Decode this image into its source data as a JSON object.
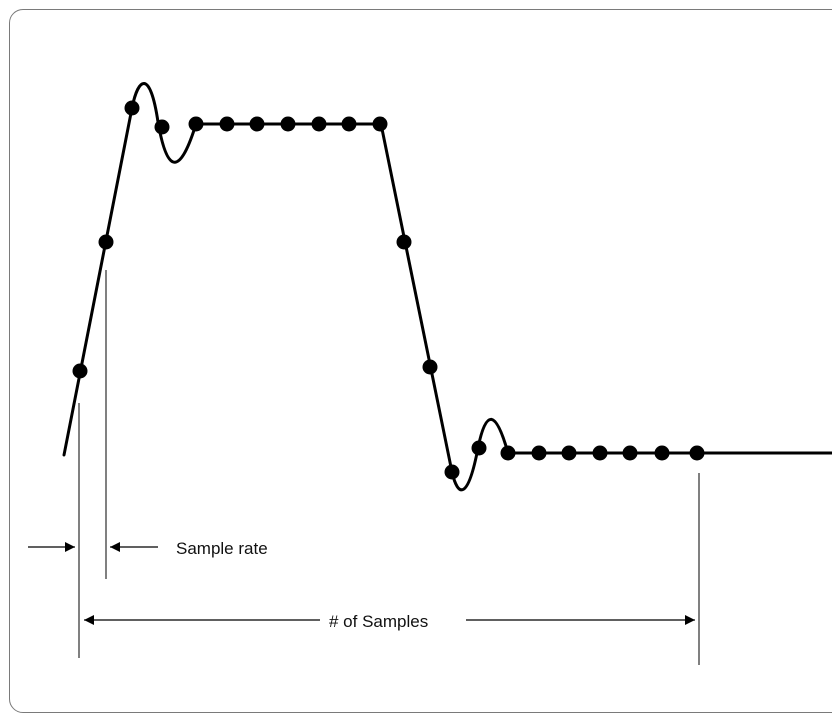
{
  "labels": {
    "sample_rate": "Sample rate",
    "num_samples": "# of Samples"
  },
  "colors": {
    "ink": "#000000",
    "frame": "#7a7a7a",
    "background": "#ffffff"
  }
}
